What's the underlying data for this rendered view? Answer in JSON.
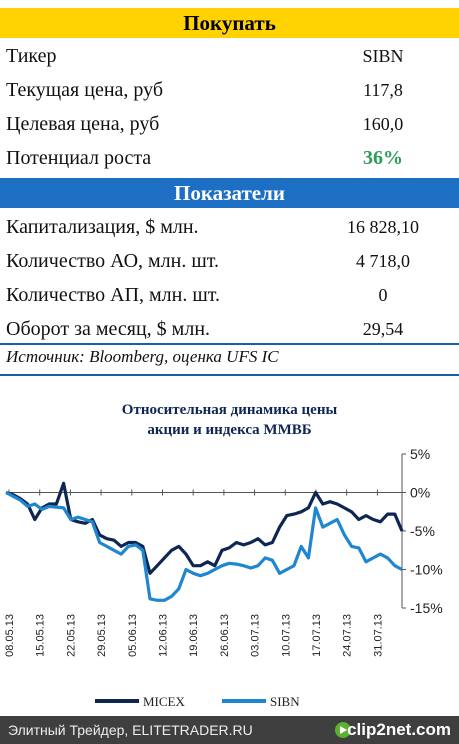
{
  "buy_band": {
    "title": "Покупать"
  },
  "summary": [
    {
      "label": "Тикер",
      "value": "SIBN"
    },
    {
      "label": "Текущая цена, руб",
      "value": "117,8"
    },
    {
      "label": "Целевая цена, руб",
      "value": "160,0"
    },
    {
      "label": "Потенциал роста",
      "value": "36%"
    }
  ],
  "indicators_band": {
    "title": "Показатели"
  },
  "indicators": [
    {
      "label": "Капитализация, $ млн.",
      "value": "16 828,10"
    },
    {
      "label": "Количество АО, млн. шт.",
      "value": "4 718,0"
    },
    {
      "label": "Количество АП, млн. шт.",
      "value": "0"
    },
    {
      "label": "Оборот за месяц, $ млн.",
      "value": "29,54"
    }
  ],
  "source": "Источник: Bloomberg, оценка UFS IC",
  "colors": {
    "yellow_band": "#FFD200",
    "blue_band": "#1C6FC2",
    "positive": "#2E9B57",
    "micex": "#0E2653",
    "sibn": "#1F86D0",
    "footer": "#3F3F3F"
  },
  "chart_data": {
    "type": "line",
    "title_lines": [
      "Относительная динамика цены",
      "акции и индекса ММВБ"
    ],
    "x_tick_labels": [
      "08.05.13",
      "15.05.13",
      "22.05.13",
      "29.05.13",
      "05.06.13",
      "12.06.13",
      "19.06.13",
      "26.06.13",
      "03.07.13",
      "10.07.13",
      "17.07.13",
      "24.07.13",
      "31.07.13"
    ],
    "y_ticks": [
      5,
      0,
      -5,
      -10,
      -15
    ],
    "y_tick_labels": [
      "5%",
      "0%",
      "-5%",
      "-10%",
      "-15%"
    ],
    "ylim": [
      -15,
      5
    ],
    "y_axis_position": "right",
    "grid": false,
    "legend_position": "bottom",
    "series": [
      {
        "name": "MICEX",
        "color": "#0E2653",
        "values": [
          0,
          -0.3,
          -0.8,
          -1.5,
          -3.5,
          -2.0,
          -1.5,
          -1.5,
          1.2,
          -3.5,
          -3.8,
          -4.0,
          -3.5,
          -5.5,
          -6.0,
          -6.2,
          -7.0,
          -6.5,
          -6.5,
          -7.0,
          -10.5,
          -9.5,
          -8.5,
          -7.5,
          -7.0,
          -8.0,
          -9.5,
          -9.5,
          -9.0,
          -9.5,
          -7.5,
          -7.2,
          -6.5,
          -6.8,
          -6.5,
          -6.0,
          -6.8,
          -6.5,
          -4.5,
          -3.0,
          -2.8,
          -2.5,
          -2.0,
          0.0,
          -1.5,
          -1.2,
          -1.5,
          -2.0,
          -2.5,
          -3.5,
          -3.0,
          -3.5,
          -3.8,
          -2.8,
          -2.8,
          -5.0
        ]
      },
      {
        "name": "SIBN",
        "color": "#1F86D0",
        "values": [
          0,
          -0.5,
          -1.0,
          -1.8,
          -1.5,
          -2.2,
          -1.8,
          -1.9,
          -2.0,
          -3.5,
          -3.2,
          -3.5,
          -3.8,
          -6.5,
          -7.0,
          -7.5,
          -8.0,
          -7.0,
          -6.8,
          -7.5,
          -13.8,
          -14.0,
          -14.0,
          -13.5,
          -12.5,
          -10.0,
          -10.5,
          -10.8,
          -10.5,
          -10.0,
          -9.5,
          -9.2,
          -9.3,
          -9.5,
          -9.8,
          -9.5,
          -8.5,
          -8.8,
          -10.5,
          -10.0,
          -9.5,
          -7.0,
          -8.5,
          -2.0,
          -4.5,
          -4.0,
          -3.5,
          -5.5,
          -7.0,
          -7.2,
          -9.0,
          -8.5,
          -8.0,
          -8.5,
          -9.5,
          -10.0
        ]
      }
    ]
  },
  "footer": {
    "text": "Элитный Трейдер, ELITETRADER.RU",
    "brand": "clip2net.com"
  }
}
